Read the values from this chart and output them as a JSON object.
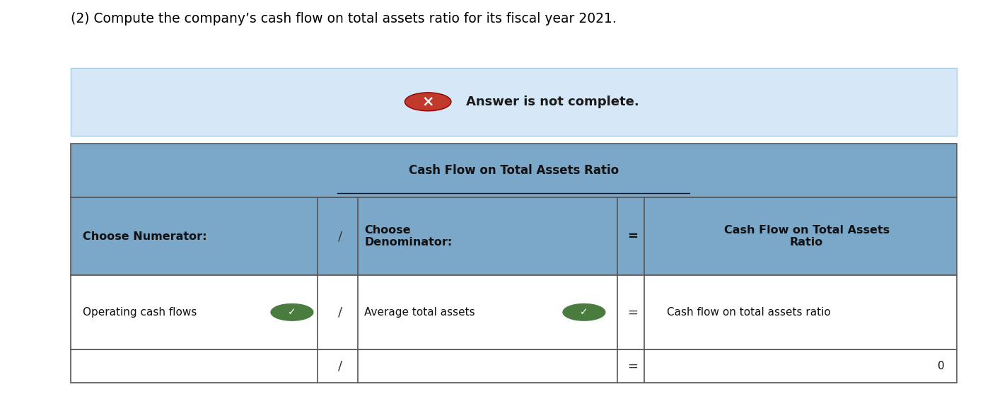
{
  "title_text": "(2) Compute the company’s cash flow on total assets ratio for its fiscal year 2021.",
  "answer_banner_text": "Answer is not complete.",
  "answer_banner_bg": "#d6e8f7",
  "answer_banner_border": "#aacce0",
  "table_header_bg": "#7ba7c9",
  "table_header_text": "Cash Flow on Total Assets Ratio",
  "col1_header": "Choose Numerator:",
  "col2_header": "Choose\nDenominator:",
  "col3_header": "Cash Flow on Total Assets\nRatio",
  "row2_col1": "Operating cash flows",
  "row2_col2": "Average total assets",
  "row2_col3": "Cash flow on total assets ratio",
  "row3_col3": "0",
  "bg_color": "#ffffff",
  "table_border_color": "#555555",
  "slash_color": "#333333",
  "equals_color": "#333333",
  "check_color": "#4a7c40",
  "x_icon_color": "#c0392b",
  "x_icon_border": "#8b0000"
}
